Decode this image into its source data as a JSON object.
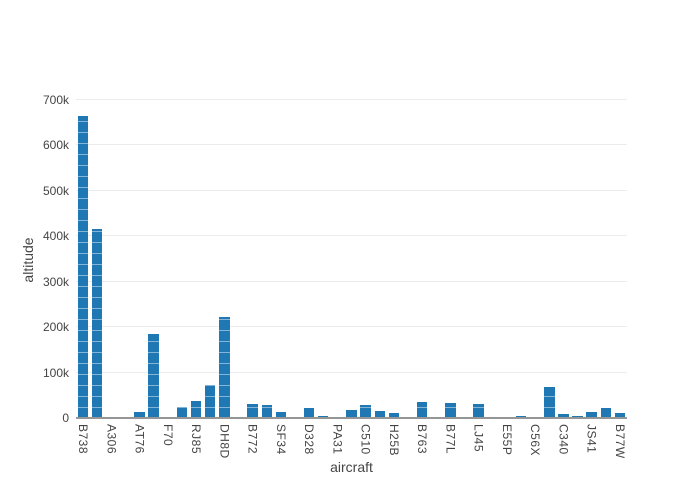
{
  "chart_data": {
    "type": "bar",
    "title": "",
    "xlabel": "aircraft",
    "ylabel": "altitude",
    "bar_color": "#1f77b4",
    "background_color": "#ffffff",
    "grid_color": "#ececec",
    "zeroline_color": "#969696",
    "axis_text_color": "#444444",
    "grid": "horizontal",
    "legend": null,
    "ylim": [
      0,
      700000
    ],
    "ytick_values": [
      0,
      100000,
      200000,
      300000,
      400000,
      500000,
      600000,
      700000
    ],
    "ytick_labels": [
      "0",
      "100k",
      "200k",
      "300k",
      "400k",
      "500k",
      "600k",
      "700k"
    ],
    "num_slots": 39,
    "xtick_slot_step": 2,
    "xtick_labels": [
      "B738",
      "A306",
      "AT76",
      "F70",
      "RJ85",
      "DH8D",
      "B772",
      "SF34",
      "D328",
      "PA31",
      "C510",
      "H25B",
      "B763",
      "B77L",
      "LJ45",
      "E55P",
      "C56X",
      "C340",
      "JS41",
      "B77W"
    ],
    "values": [
      665000,
      415000,
      0,
      0,
      14000,
      184000,
      0,
      25000,
      37000,
      73000,
      222000,
      0,
      31000,
      29000,
      14000,
      2000,
      22000,
      4000,
      2000,
      18000,
      29000,
      16000,
      12000,
      1000,
      35000,
      1500,
      33000,
      1500,
      30000,
      0,
      1000,
      4000,
      2000,
      68000,
      9000,
      4000,
      14000,
      22000,
      11000
    ]
  }
}
